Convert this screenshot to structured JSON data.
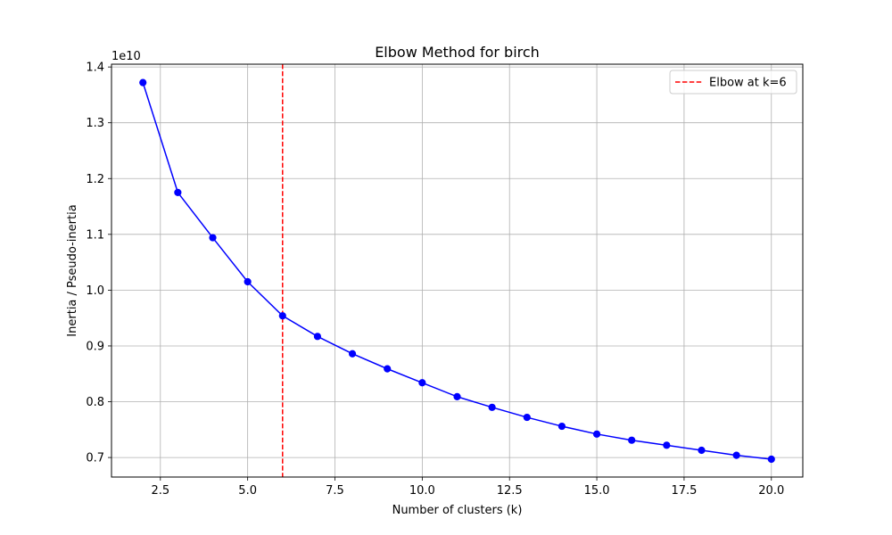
{
  "chart_data": {
    "type": "line",
    "title": "Elbow Method for birch",
    "xlabel": "Number of clusters (k)",
    "ylabel": "Inertia / Pseudo-inertia",
    "y_offset_label": "1e10",
    "y_scale_factor": 10000000000,
    "xlim": [
      1.1,
      20.9
    ],
    "ylim": [
      0.665,
      1.405
    ],
    "x_ticks": [
      2.5,
      5.0,
      7.5,
      10.0,
      12.5,
      15.0,
      17.5,
      20.0
    ],
    "x_tick_labels": [
      "2.5",
      "5.0",
      "7.5",
      "10.0",
      "12.5",
      "15.0",
      "17.5",
      "20.0"
    ],
    "y_ticks": [
      0.7,
      0.8,
      0.9,
      1.0,
      1.1,
      1.2,
      1.3,
      1.4
    ],
    "y_tick_labels": [
      "0.7",
      "0.8",
      "0.9",
      "1.0",
      "1.1",
      "1.2",
      "1.3",
      "1.4"
    ],
    "grid": true,
    "legend_position": "top-right",
    "series": [
      {
        "color": "#0000ff",
        "marker": "circle",
        "x": [
          2,
          3,
          4,
          5,
          6,
          7,
          8,
          9,
          10,
          11,
          12,
          13,
          14,
          15,
          16,
          17,
          18,
          19,
          20
        ],
        "y": [
          1.372,
          1.175,
          1.094,
          1.015,
          0.954,
          0.917,
          0.886,
          0.859,
          0.834,
          0.809,
          0.79,
          0.772,
          0.756,
          0.742,
          0.731,
          0.722,
          0.713,
          0.704,
          0.697
        ]
      }
    ],
    "vlines": [
      {
        "x": 6,
        "color": "#ff0000",
        "style": "dashed",
        "label": "Elbow at k=6"
      }
    ]
  }
}
